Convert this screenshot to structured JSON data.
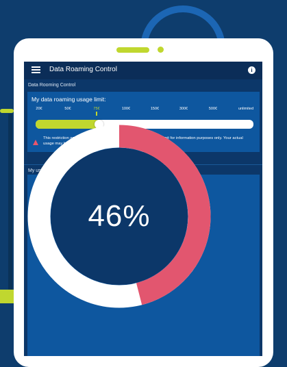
{
  "app": {
    "title": "Data Roaming Control",
    "menu_icon": "hamburger-menu-icon",
    "info_icon": "info-icon",
    "info_glyph": "i"
  },
  "limit_section": {
    "label": "Data Rooming Control",
    "title": "My data roaming usage limit:",
    "ticks": [
      "20€",
      "50€",
      "75€",
      "100€",
      "150€",
      "300€",
      "500€",
      "unlimited"
    ],
    "selected_tick": "75€",
    "slider_fraction": 0.29,
    "warning_icon": "warning-triangle-icon",
    "warning_text": "This restriction applies to all your communications outside Europe. Limit for information purposes only. Your actual usage may be higher."
  },
  "usage_section": {
    "label": "My usage",
    "percent_value": 46,
    "percent_text": "46%"
  },
  "colors": {
    "accent": "#c0d72f",
    "usage_arc": "#e2566f",
    "card": "#0e579f",
    "app_bar": "#0b2d58"
  }
}
